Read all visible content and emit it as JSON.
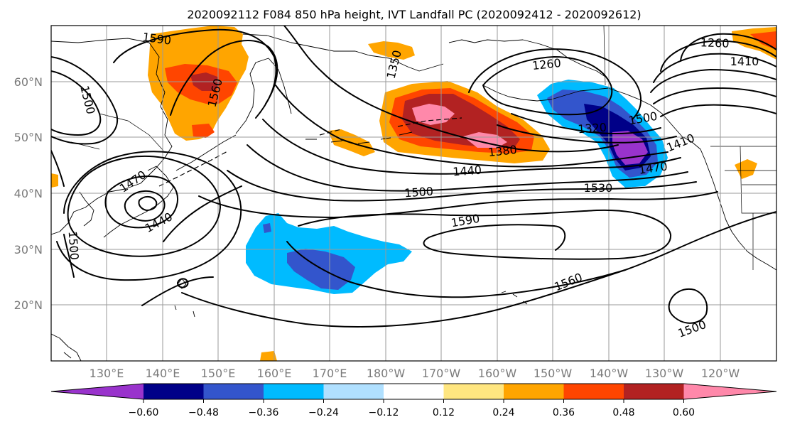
{
  "title": "2020092112 F084 850 hPa height, IVT Landfall PC (2020092412 - 2020092612)",
  "map": {
    "lat_labels": [
      "60°N",
      "50°N",
      "40°N",
      "30°N",
      "20°N"
    ],
    "lon_labels": [
      "130°E",
      "140°E",
      "150°E",
      "160°E",
      "170°E",
      "180°W",
      "170°W",
      "160°W",
      "150°W",
      "140°W",
      "130°W",
      "120°W"
    ],
    "contour_labels": [
      "1590",
      "1560",
      "1500",
      "1350",
      "1260",
      "1260",
      "1380",
      "1440",
      "1320",
      "1410",
      "1470",
      "1470",
      "1440",
      "1500",
      "1500",
      "1530",
      "1590",
      "1560",
      "1500",
      "1500",
      "1410"
    ],
    "colors": {
      "ocean": "#ffffff",
      "land_border": "#000000",
      "grid": "#9a9a9a",
      "label_gray": "#7a7a7a"
    }
  },
  "colorbar": {
    "colors": [
      "#9933cc",
      "#000088",
      "#3355cc",
      "#00bbff",
      "#b0e0ff",
      "#ffffff",
      "#ffe680",
      "#ffa500",
      "#ff4500",
      "#b22222",
      "#ff88aa"
    ],
    "tick_labels": [
      "−0.60",
      "−0.48",
      "−0.36",
      "−0.24",
      "−0.12",
      "0.12",
      "0.24",
      "0.36",
      "0.48",
      "0.60"
    ]
  }
}
